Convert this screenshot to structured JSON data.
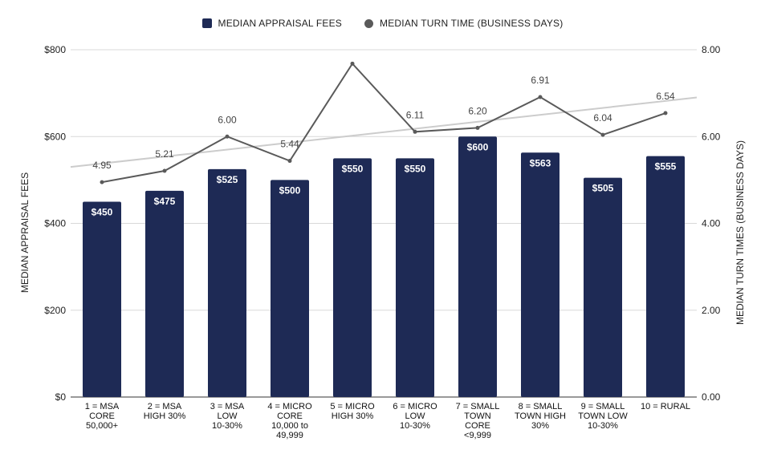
{
  "legend": {
    "bars_label": "MEDIAN APPRAISAL FEES",
    "line_label": "MEDIAN TURN TIME (BUSINESS DAYS)"
  },
  "colors": {
    "bar": "#1e2a55",
    "line": "#5a5a5a",
    "trend": "#cccccc",
    "grid": "#d9d9d9"
  },
  "chart_data": {
    "type": "bar",
    "legend_position": "top",
    "grid": true,
    "categories": [
      [
        "1 = MSA",
        "CORE",
        "50,000+"
      ],
      [
        "2 = MSA",
        "HIGH 30%"
      ],
      [
        "3 = MSA",
        "LOW",
        "10-30%"
      ],
      [
        "4 = MICRO",
        "CORE",
        "10,000 to",
        "49,999"
      ],
      [
        "5 = MICRO",
        "HIGH 30%"
      ],
      [
        "6 = MICRO",
        "LOW",
        "10-30%"
      ],
      [
        "7 = SMALL",
        "TOWN",
        "CORE",
        "<9,999"
      ],
      [
        "8 = SMALL",
        "TOWN HIGH",
        "30%"
      ],
      [
        "9 = SMALL",
        "TOWN LOW",
        "10-30%"
      ],
      [
        "10 = RURAL"
      ]
    ],
    "series": [
      {
        "name": "MEDIAN APPRAISAL FEES",
        "type": "bar",
        "axis": "left",
        "values": [
          450,
          475,
          525,
          500,
          550,
          550,
          600,
          563,
          505,
          555
        ],
        "labels": [
          "$450",
          "$475",
          "$525",
          "$500",
          "$550",
          "$550",
          "$600",
          "$563",
          "$505",
          "$555"
        ]
      },
      {
        "name": "MEDIAN TURN TIME (BUSINESS DAYS)",
        "type": "line",
        "axis": "right",
        "values": [
          4.95,
          5.21,
          6.0,
          5.44,
          7.68,
          6.11,
          6.2,
          6.91,
          6.04,
          6.54
        ],
        "labels": [
          "4.95",
          "5.21",
          "6.00",
          "5.44",
          "",
          "6.11",
          "6.20",
          "6.91",
          "6.04",
          "6.54"
        ]
      }
    ],
    "trendline": {
      "series": "MEDIAN TURN TIME (BUSINESS DAYS)",
      "start": 5.3,
      "end": 6.9
    },
    "ylabel": "MEDIAN APPRAISAL FEES",
    "ylim": [
      0,
      800
    ],
    "yticks": [
      "$0",
      "$200",
      "$400",
      "$600",
      "$800"
    ],
    "y2label": "MEDIAN TURN TIMES (BUSINESS DAYS)",
    "y2lim": [
      0,
      8
    ],
    "y2ticks": [
      "0.00",
      "2.00",
      "4.00",
      "6.00",
      "8.00"
    ]
  }
}
